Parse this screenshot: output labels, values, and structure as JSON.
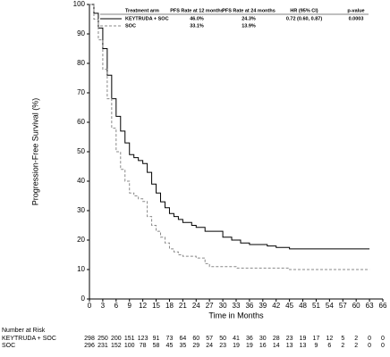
{
  "chart_data": {
    "type": "line",
    "step": true,
    "ylabel": "Progression-Free Survival (%)",
    "xlabel": "Time in Months",
    "xlim": [
      0,
      66
    ],
    "ylim": [
      0,
      100
    ],
    "xticks": [
      0,
      3,
      6,
      9,
      12,
      15,
      18,
      21,
      24,
      27,
      30,
      33,
      36,
      39,
      42,
      45,
      48,
      51,
      54,
      57,
      60,
      63,
      66
    ],
    "yticks": [
      0,
      10,
      20,
      30,
      40,
      50,
      60,
      70,
      80,
      90,
      100
    ],
    "series": [
      {
        "name": "KEYTRUDA + SOC",
        "color": "#000000",
        "dashed": false,
        "x": [
          0,
          1,
          2,
          3,
          4,
          5,
          6,
          7,
          8,
          9,
          10,
          11,
          12,
          13,
          14,
          15,
          16,
          17,
          18,
          19,
          20,
          21,
          23,
          24,
          26,
          30,
          32,
          34,
          36,
          40,
          42,
          45,
          63
        ],
        "values": [
          100,
          97,
          92,
          85,
          76,
          68,
          62,
          57,
          53,
          49,
          48,
          47,
          46,
          43,
          39,
          36,
          33,
          31,
          29,
          28,
          27,
          26,
          25,
          24.3,
          23,
          21,
          20,
          19,
          18.5,
          18,
          17.5,
          17,
          17
        ]
      },
      {
        "name": "SOC",
        "color": "#888888",
        "dashed": true,
        "x": [
          0,
          1,
          2,
          3,
          4,
          5,
          6,
          7,
          8,
          9,
          10,
          11,
          12,
          13,
          14,
          15,
          16,
          17,
          18,
          19,
          20,
          21,
          24,
          26,
          27,
          33,
          45,
          63
        ],
        "values": [
          100,
          95,
          88,
          78,
          68,
          58,
          50,
          44,
          40,
          36,
          35,
          34,
          33.1,
          28,
          25,
          23,
          21,
          19,
          17,
          16,
          15,
          14.5,
          13.9,
          12,
          11,
          10.5,
          10,
          10
        ]
      }
    ],
    "legend_table": {
      "headers": [
        "Treatment arm",
        "PFS Rate at 12 months",
        "PFS Rate at 24 months",
        "HR (95% CI)",
        "p-value"
      ],
      "rows": [
        [
          "46.0%",
          "24.3%",
          "0.72 (0.60, 0.87)",
          "0.0003"
        ],
        [
          "33.1%",
          "13.9%"
        ]
      ]
    },
    "risk_table": {
      "title": "Number at Risk",
      "rows": [
        [
          298,
          250,
          200,
          151,
          123,
          91,
          73,
          64,
          60,
          57,
          50,
          41,
          36,
          30,
          28,
          23,
          19,
          17,
          12,
          5,
          2,
          0,
          0
        ],
        [
          296,
          231,
          152,
          100,
          78,
          58,
          45,
          35,
          29,
          24,
          23,
          19,
          19,
          16,
          14,
          13,
          13,
          9,
          6,
          2,
          2,
          0,
          0
        ]
      ]
    }
  }
}
